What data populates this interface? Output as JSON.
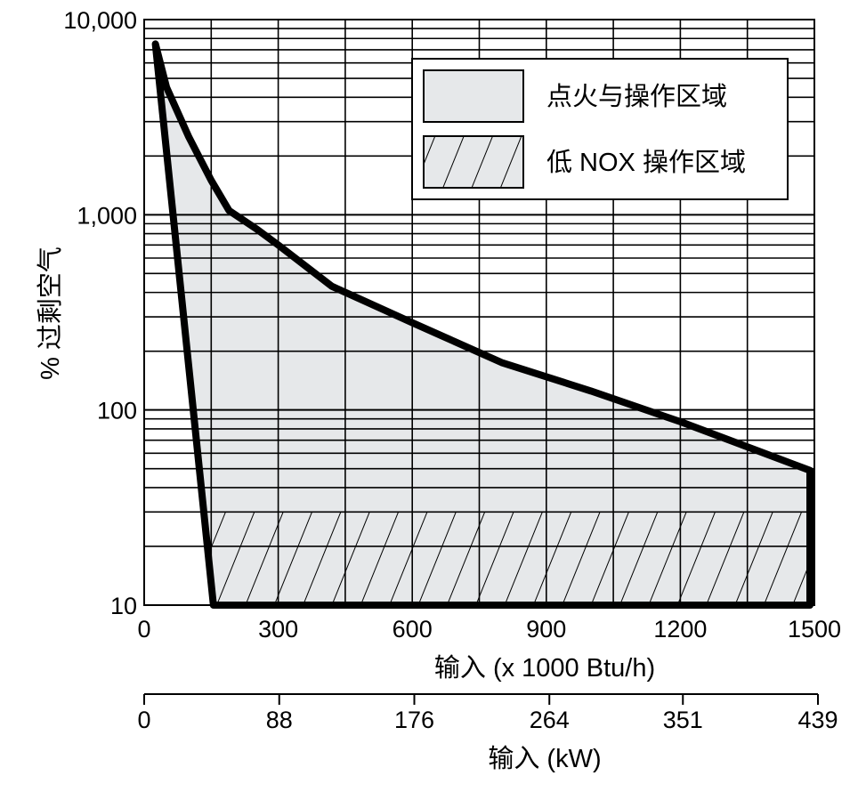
{
  "chart_data": {
    "type": "area",
    "xlabel": "输入 (x 1000 Btu/h)",
    "x2label": "输入 (kW)",
    "ylabel": "% 过剩空气",
    "yscale": "log",
    "ylim": [
      10,
      10000
    ],
    "xlim": [
      0,
      1500
    ],
    "x2lim": [
      0,
      439
    ],
    "xticks": [
      "0",
      "300",
      "600",
      "900",
      "1200",
      "1500"
    ],
    "x2ticks": [
      "0",
      "88",
      "176",
      "264",
      "351",
      "439"
    ],
    "yticks": [
      "10",
      "100",
      "1,000",
      "10,000"
    ],
    "grid": true,
    "legend_position": "top-right",
    "low_nox_upper_limit": 30,
    "series": [
      {
        "name": "点火与操作区域",
        "style": "solid-fill",
        "fill_color": "#e6e8ea",
        "boundary": [
          {
            "x": 25,
            "y": 7500
          },
          {
            "x": 50,
            "y": 4500
          },
          {
            "x": 100,
            "y": 2500
          },
          {
            "x": 150,
            "y": 1500
          },
          {
            "x": 190,
            "y": 1050
          },
          {
            "x": 250,
            "y": 850
          },
          {
            "x": 300,
            "y": 700
          },
          {
            "x": 420,
            "y": 430
          },
          {
            "x": 600,
            "y": 280
          },
          {
            "x": 800,
            "y": 175
          },
          {
            "x": 1000,
            "y": 125
          },
          {
            "x": 1200,
            "y": 87
          },
          {
            "x": 1490,
            "y": 49
          },
          {
            "x": 1490,
            "y": 10
          },
          {
            "x": 155,
            "y": 10
          }
        ]
      },
      {
        "name": "低 NOX 操作区域",
        "style": "hatched",
        "fill_color": "#e6e8ea"
      }
    ],
    "title": ""
  }
}
